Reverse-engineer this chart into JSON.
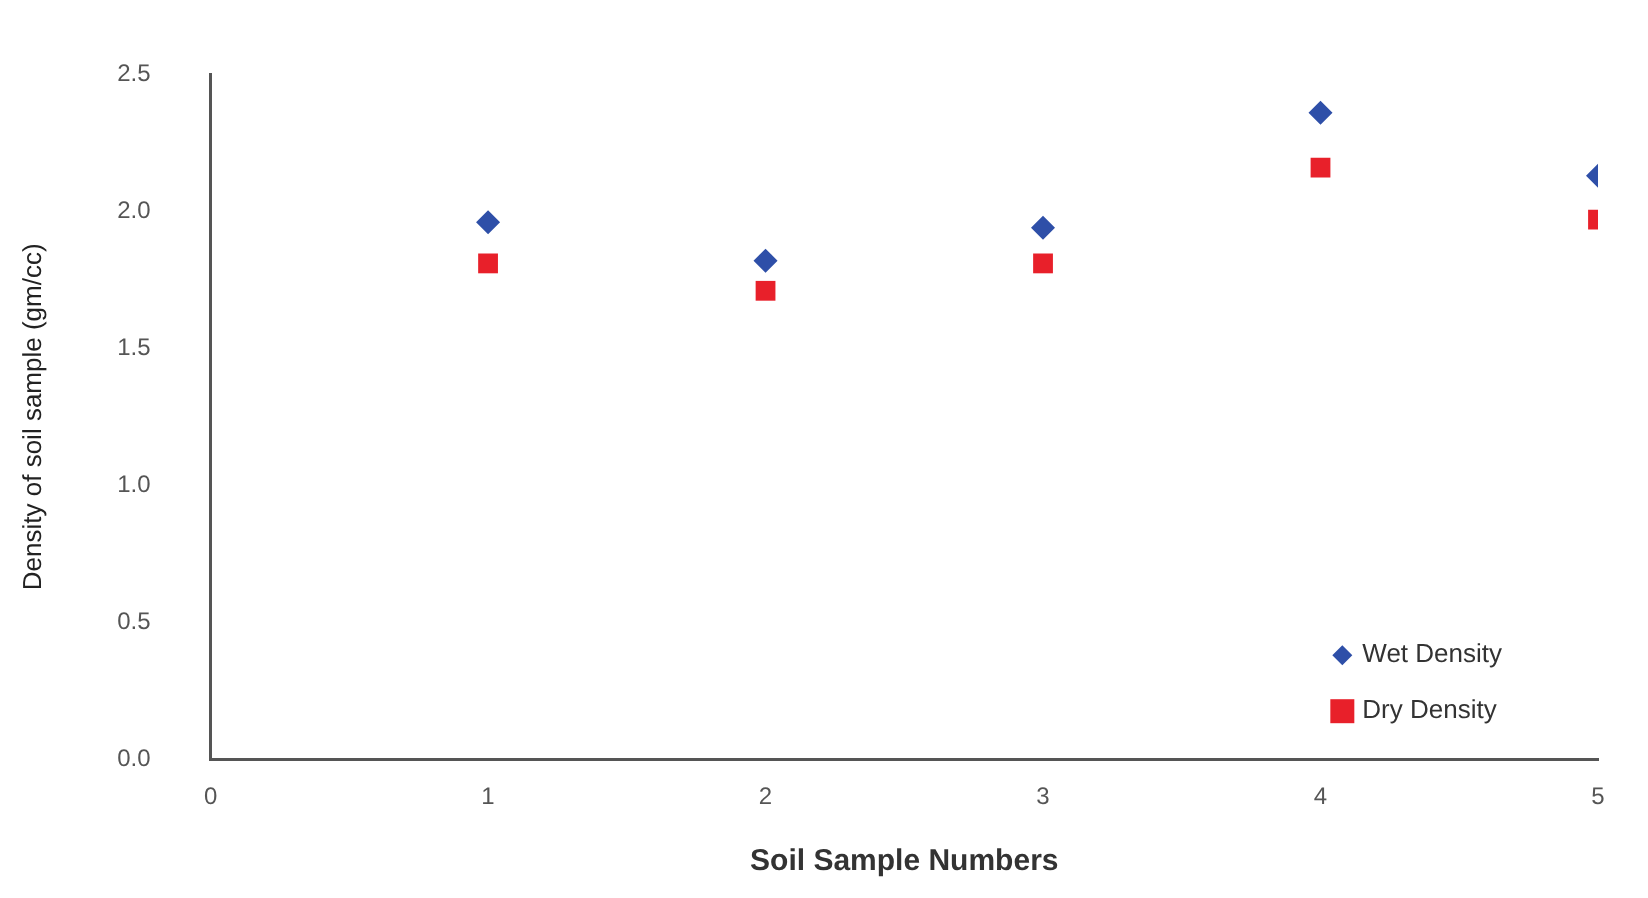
{
  "chart_data": {
    "type": "scatter",
    "xlabel": "Soil Sample Numbers",
    "ylabel": "Density of soil sample (gm/cc)",
    "x": [
      1,
      2,
      3,
      4,
      5
    ],
    "series": [
      {
        "name": "Wet Density",
        "color": "#2e4fa8",
        "marker": "diamond",
        "values": [
          1.96,
          1.82,
          1.94,
          2.36,
          2.13
        ]
      },
      {
        "name": "Dry Density",
        "color": "#e8202a",
        "marker": "square",
        "values": [
          1.81,
          1.71,
          1.81,
          2.16,
          1.97
        ]
      }
    ],
    "xlim": [
      0,
      5
    ],
    "xticks": [
      0,
      1,
      2,
      3,
      4,
      5
    ],
    "ylim": [
      0,
      2.5
    ],
    "yticks": [
      {
        "value": 0,
        "label": "0.0"
      },
      0.5,
      {
        "value": 1,
        "label": "1.0"
      },
      1.5,
      {
        "value": 2,
        "label": "2.0"
      },
      2.5
    ],
    "grid": false,
    "legend": "bottom right"
  }
}
